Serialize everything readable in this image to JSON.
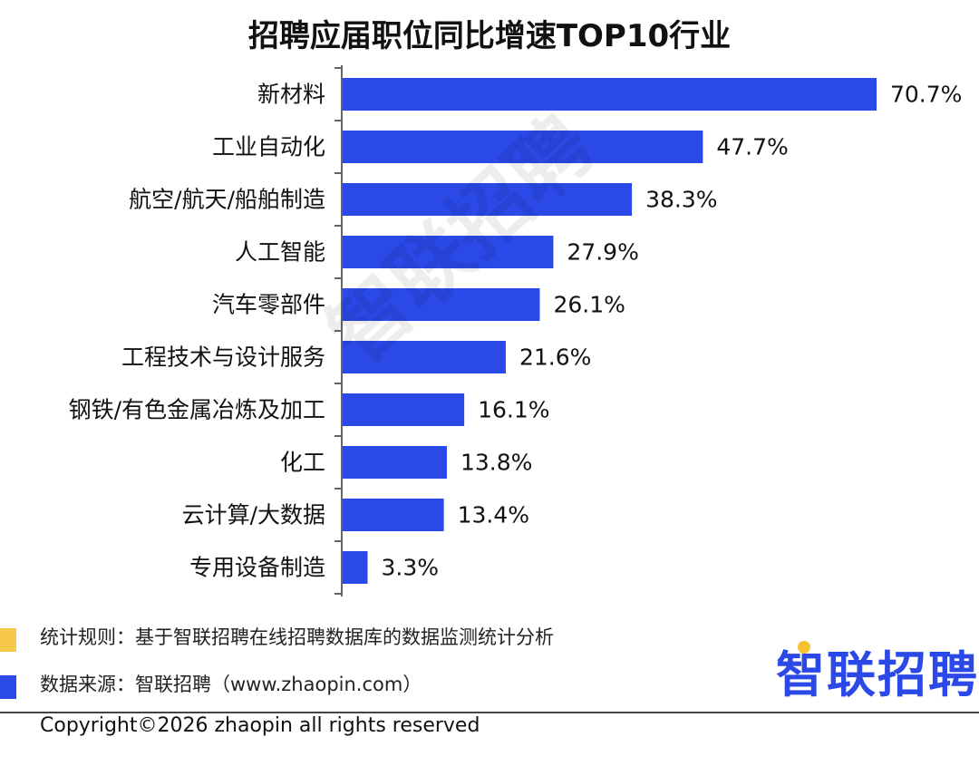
{
  "title": "招聘应届职位同比增速TOP10行业",
  "watermark": "智联招聘",
  "chart_data": {
    "type": "bar",
    "orientation": "horizontal",
    "title": "招聘应届职位同比增速TOP10行业",
    "categories": [
      "新材料",
      "工业自动化",
      "航空/航天/船舶制造",
      "人工智能",
      "汽车零部件",
      "工程技术与设计服务",
      "钢铁/有色金属冶炼及加工",
      "化工",
      "云计算/大数据",
      "专用设备制造"
    ],
    "values": [
      70.7,
      47.7,
      38.3,
      27.9,
      26.1,
      21.6,
      16.1,
      13.8,
      13.4,
      3.3
    ],
    "value_labels": [
      "70.7%",
      "47.7%",
      "38.3%",
      "27.9%",
      "26.1%",
      "21.6%",
      "16.1%",
      "13.8%",
      "13.4%",
      "3.3%"
    ],
    "bar_color": "#2a49e6",
    "xlim": [
      0,
      70.7
    ],
    "grid": false
  },
  "notes": [
    {
      "text": "统计规则：基于智联招聘在线招聘数据库的数据监测统计分析",
      "color": "#f7c94a"
    },
    {
      "text": "数据来源：智联招聘（www.zhaopin.com）",
      "color": "#2a49e6"
    }
  ],
  "logo": "智联招聘",
  "copyright": "Copyright©2026 zhaopin all rights reserved"
}
